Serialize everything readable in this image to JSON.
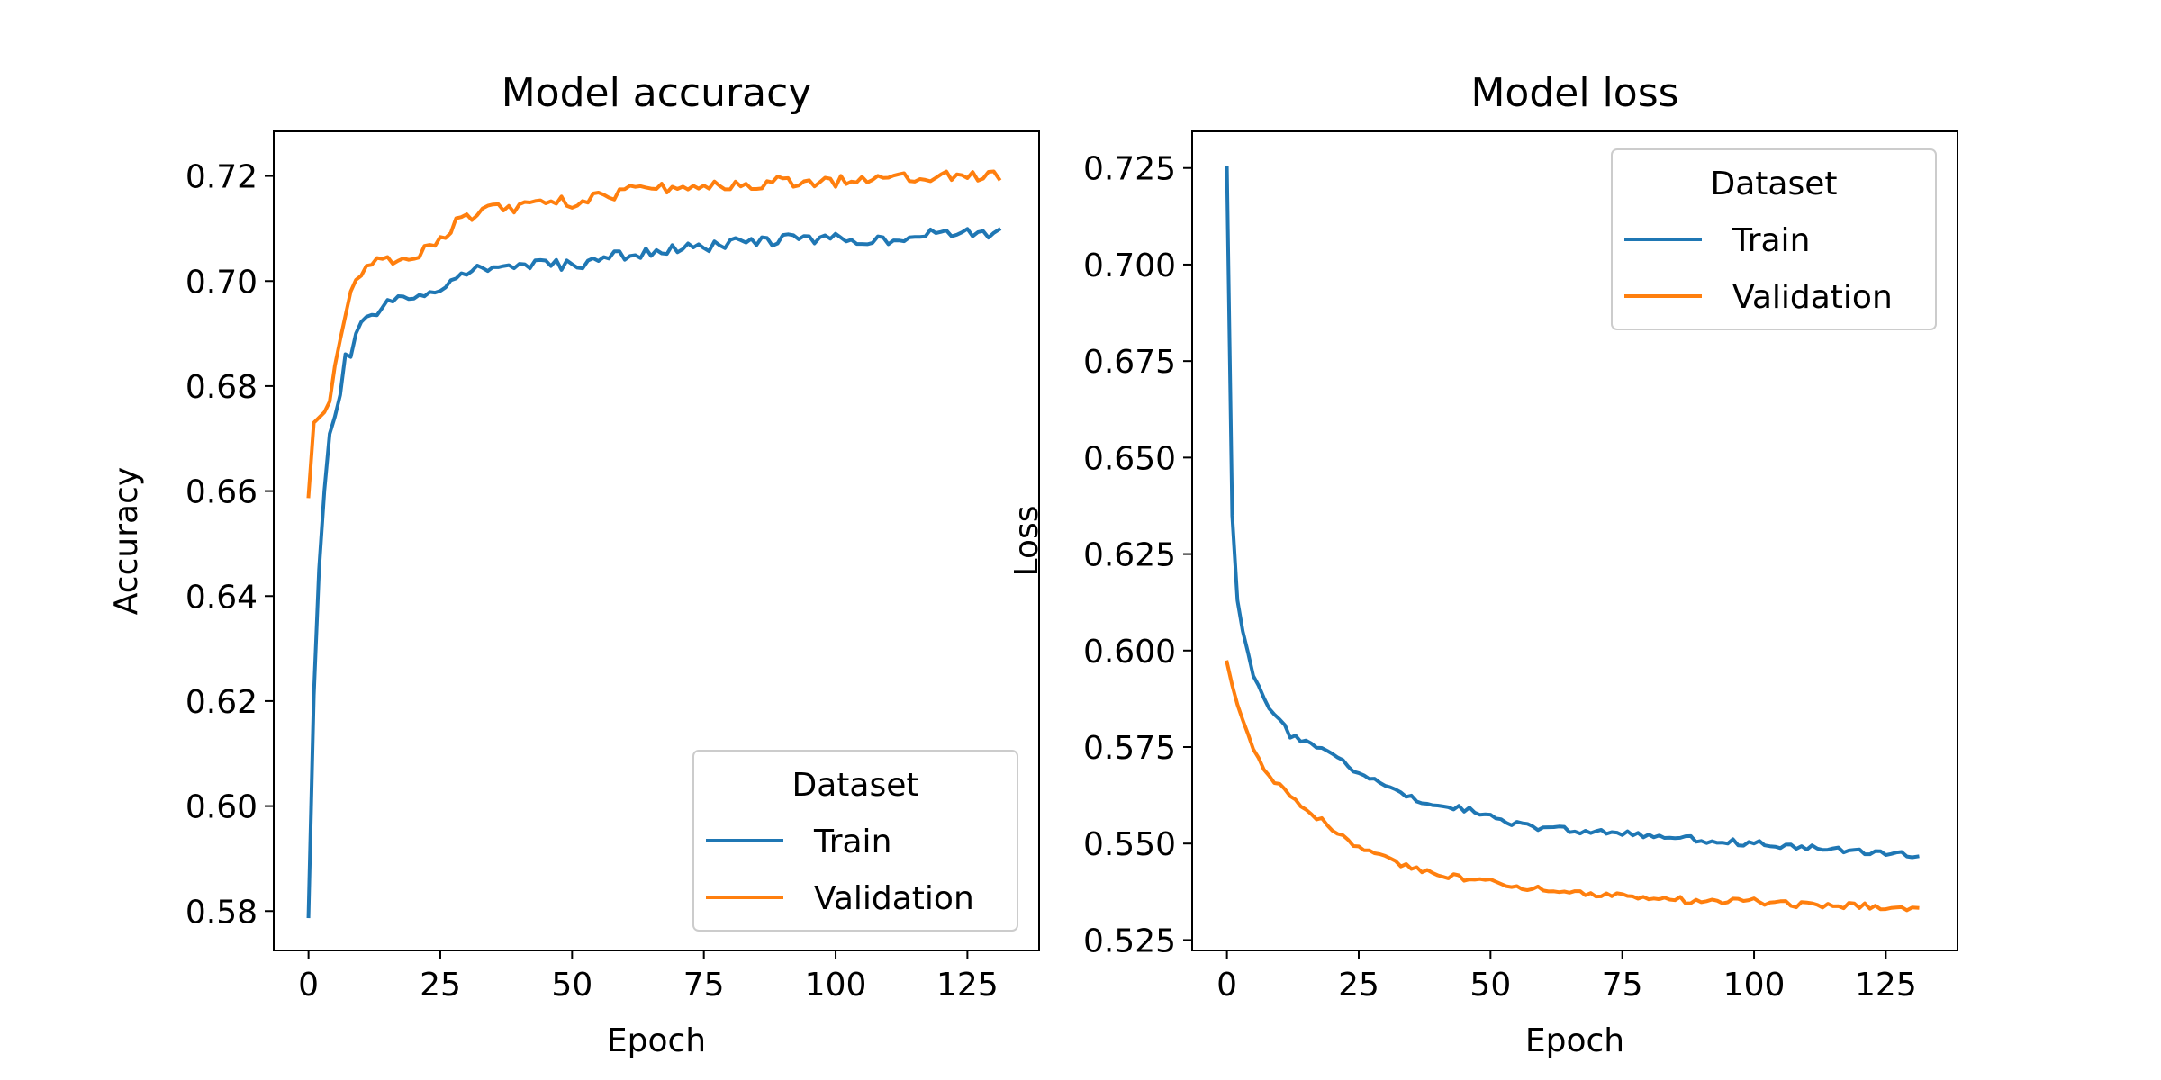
{
  "chart_data": [
    {
      "type": "line",
      "title": "Model accuracy",
      "xlabel": "Epoch",
      "ylabel": "Accuracy",
      "xlim": [
        -6.6,
        138.6
      ],
      "ylim": [
        0.5725,
        0.7285
      ],
      "xticks": [
        0,
        25,
        50,
        75,
        100,
        125
      ],
      "xtick_labels": [
        "0",
        "25",
        "50",
        "75",
        "100",
        "125"
      ],
      "yticks": [
        0.58,
        0.6,
        0.62,
        0.64,
        0.66,
        0.68,
        0.7,
        0.72
      ],
      "ytick_labels": [
        "0.58",
        "0.60",
        "0.62",
        "0.64",
        "0.66",
        "0.68",
        "0.70",
        "0.72"
      ],
      "grid": false,
      "legend": {
        "title": "Dataset",
        "placement": "lower-right",
        "entries": [
          "Train",
          "Validation"
        ]
      },
      "anchors": [
        {
          "name": "Train",
          "color": "#1f77b4",
          "points": [
            [
              0,
              0.579
            ],
            [
              1,
              0.621
            ],
            [
              2,
              0.645
            ],
            [
              3,
              0.66
            ],
            [
              4,
              0.67
            ],
            [
              5,
              0.675
            ],
            [
              6,
              0.678
            ],
            [
              7,
              0.685
            ],
            [
              8,
              0.686
            ],
            [
              9,
              0.689
            ],
            [
              10,
              0.692
            ],
            [
              12,
              0.693
            ],
            [
              14,
              0.695
            ],
            [
              16,
              0.696
            ],
            [
              20,
              0.697
            ],
            [
              25,
              0.699
            ],
            [
              28,
              0.7
            ],
            [
              30,
              0.702
            ],
            [
              40,
              0.703
            ],
            [
              50,
              0.703
            ],
            [
              60,
              0.705
            ],
            [
              70,
              0.706
            ],
            [
              80,
              0.707
            ],
            [
              90,
              0.708
            ],
            [
              100,
              0.708
            ],
            [
              110,
              0.708
            ],
            [
              120,
              0.709
            ],
            [
              131,
              0.709
            ]
          ]
        },
        {
          "name": "Validation",
          "color": "#ff7f0e",
          "points": [
            [
              0,
              0.659
            ],
            [
              1,
              0.673
            ],
            [
              2,
              0.674
            ],
            [
              3,
              0.675
            ],
            [
              4,
              0.678
            ],
            [
              5,
              0.683
            ],
            [
              6,
              0.689
            ],
            [
              7,
              0.694
            ],
            [
              8,
              0.698
            ],
            [
              10,
              0.701
            ],
            [
              12,
              0.703
            ],
            [
              15,
              0.704
            ],
            [
              20,
              0.705
            ],
            [
              22,
              0.706
            ],
            [
              25,
              0.708
            ],
            [
              28,
              0.711
            ],
            [
              30,
              0.712
            ],
            [
              35,
              0.714
            ],
            [
              40,
              0.714
            ],
            [
              45,
              0.715
            ],
            [
              50,
              0.715
            ],
            [
              55,
              0.716
            ],
            [
              60,
              0.717
            ],
            [
              70,
              0.718
            ],
            [
              80,
              0.718
            ],
            [
              90,
              0.719
            ],
            [
              100,
              0.719
            ],
            [
              110,
              0.72
            ],
            [
              120,
              0.72
            ],
            [
              131,
              0.72
            ]
          ]
        }
      ]
    },
    {
      "type": "line",
      "title": "Model loss",
      "xlabel": "Epoch",
      "ylabel": "Loss",
      "xlim": [
        -6.6,
        138.6
      ],
      "ylim": [
        0.5223,
        0.7345
      ],
      "xticks": [
        0,
        25,
        50,
        75,
        100,
        125
      ],
      "xtick_labels": [
        "0",
        "25",
        "50",
        "75",
        "100",
        "125"
      ],
      "yticks": [
        0.525,
        0.55,
        0.575,
        0.6,
        0.625,
        0.65,
        0.675,
        0.7,
        0.725
      ],
      "ytick_labels": [
        "0.525",
        "0.550",
        "0.575",
        "0.600",
        "0.625",
        "0.650",
        "0.675",
        "0.700",
        "0.725"
      ],
      "grid": false,
      "legend": {
        "title": "Dataset",
        "placement": "upper-right",
        "entries": [
          "Train",
          "Validation"
        ]
      },
      "anchors": [
        {
          "name": "Train",
          "color": "#1f77b4",
          "points": [
            [
              0,
              0.725
            ],
            [
              1,
              0.635
            ],
            [
              2,
              0.613
            ],
            [
              3,
              0.605
            ],
            [
              4,
              0.599
            ],
            [
              5,
              0.594
            ],
            [
              6,
              0.591
            ],
            [
              7,
              0.588
            ],
            [
              8,
              0.585
            ],
            [
              10,
              0.582
            ],
            [
              12,
              0.578
            ],
            [
              15,
              0.576
            ],
            [
              20,
              0.573
            ],
            [
              25,
              0.568
            ],
            [
              30,
              0.565
            ],
            [
              35,
              0.562
            ],
            [
              40,
              0.56
            ],
            [
              45,
              0.559
            ],
            [
              50,
              0.557
            ],
            [
              55,
              0.555
            ],
            [
              60,
              0.554
            ],
            [
              70,
              0.553
            ],
            [
              80,
              0.552
            ],
            [
              90,
              0.551
            ],
            [
              100,
              0.55
            ],
            [
              110,
              0.549
            ],
            [
              120,
              0.548
            ],
            [
              131,
              0.547
            ]
          ]
        },
        {
          "name": "Validation",
          "color": "#ff7f0e",
          "points": [
            [
              0,
              0.597
            ],
            [
              1,
              0.591
            ],
            [
              2,
              0.586
            ],
            [
              3,
              0.582
            ],
            [
              4,
              0.578
            ],
            [
              5,
              0.575
            ],
            [
              6,
              0.572
            ],
            [
              7,
              0.569
            ],
            [
              8,
              0.567
            ],
            [
              10,
              0.565
            ],
            [
              12,
              0.562
            ],
            [
              15,
              0.559
            ],
            [
              20,
              0.554
            ],
            [
              25,
              0.549
            ],
            [
              30,
              0.546
            ],
            [
              35,
              0.544
            ],
            [
              40,
              0.542
            ],
            [
              45,
              0.541
            ],
            [
              50,
              0.54
            ],
            [
              55,
              0.539
            ],
            [
              60,
              0.538
            ],
            [
              70,
              0.537
            ],
            [
              80,
              0.536
            ],
            [
              90,
              0.535
            ],
            [
              100,
              0.535
            ],
            [
              110,
              0.534
            ],
            [
              120,
              0.534
            ],
            [
              131,
              0.533
            ]
          ]
        }
      ]
    }
  ]
}
